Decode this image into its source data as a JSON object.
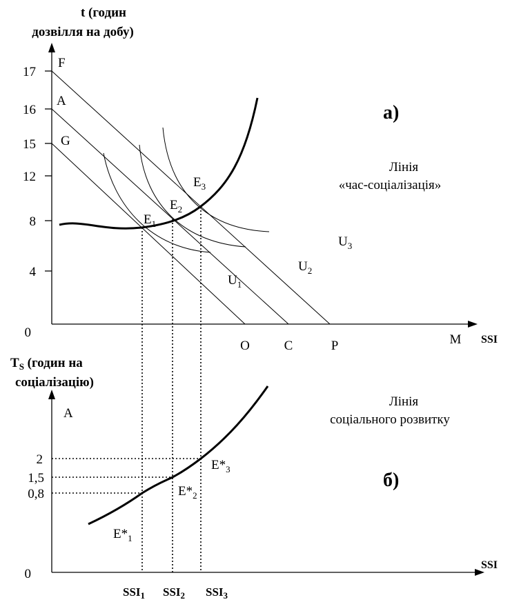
{
  "upper": {
    "y_title": [
      "t (годин",
      "дозвілля на добу)"
    ],
    "y_ticks": [
      "17",
      "16",
      "15",
      "12",
      "8",
      "4"
    ],
    "origin": "0",
    "line_labels": [
      "F",
      "A",
      "G"
    ],
    "panel": "а)",
    "curve_label": [
      "Лінія",
      "«час-соціалізація»"
    ],
    "points": [
      {
        "text": "E",
        "sub": "1"
      },
      {
        "text": "E",
        "sub": "2"
      },
      {
        "text": "E",
        "sub": "3"
      }
    ],
    "utility": [
      {
        "text": "U",
        "sub": "1"
      },
      {
        "text": "U",
        "sub": "2"
      },
      {
        "text": "U",
        "sub": "3"
      }
    ],
    "x_points": [
      "O",
      "C",
      "P",
      "M"
    ],
    "x_title": "SSI"
  },
  "lower": {
    "y_title": [
      {
        "text": "T",
        "sub": "S",
        "rest": " (годин на"
      },
      "соціалізацію)"
    ],
    "y_axis_label": "A",
    "curve_label": [
      "Лінія",
      "соціального розвитку"
    ],
    "y_ticks": [
      "2",
      "1,5",
      "0,8"
    ],
    "points": [
      {
        "text": "E*",
        "sub": "1"
      },
      {
        "text": "E*",
        "sub": "2"
      },
      {
        "text": "E*",
        "sub": "3"
      }
    ],
    "panel": "б)",
    "origin": "0",
    "x_title": "SSI",
    "x_ticks": [
      {
        "text": "SSI",
        "sub": "1"
      },
      {
        "text": "SSI",
        "sub": "2"
      },
      {
        "text": "SSI",
        "sub": "3"
      }
    ]
  }
}
